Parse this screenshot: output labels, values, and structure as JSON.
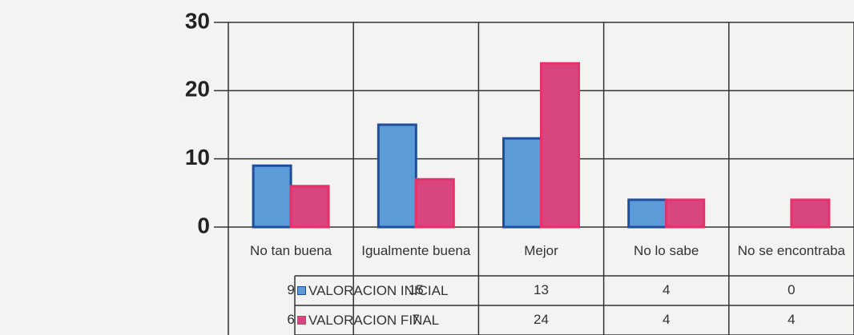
{
  "chart_data": {
    "type": "bar",
    "categories": [
      "No tan buena",
      "Igualmente buena",
      "Mejor",
      "No lo sabe",
      "No se encontraba"
    ],
    "series": [
      {
        "name": "VALORACION INICIAL",
        "color": "#5b9bd8",
        "values": [
          9,
          15,
          13,
          4,
          0
        ]
      },
      {
        "name": "VALORACION FINAL",
        "color": "#d9457e",
        "values": [
          6,
          7,
          24,
          4,
          4
        ]
      }
    ],
    "ylim": [
      0,
      30
    ],
    "yticks": [
      0,
      10,
      20,
      30
    ],
    "grid": true
  }
}
